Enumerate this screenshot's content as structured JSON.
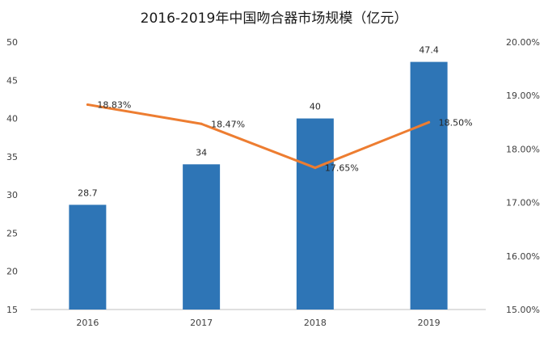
{
  "chart_data": {
    "type": "bar",
    "title": "2016-2019年中国吻合器市场规模（亿元）",
    "categories": [
      "2016",
      "2017",
      "2018",
      "2019"
    ],
    "series": [
      {
        "values": [
          28.7,
          34,
          40,
          47.4
        ],
        "kind": "bar",
        "axis": "left",
        "color": "#2E75B6",
        "labels": [
          "28.7",
          "34",
          "40",
          "47.4"
        ]
      },
      {
        "values": [
          18.83,
          18.47,
          17.65,
          18.5
        ],
        "kind": "line",
        "axis": "right",
        "color": "#ED7D31",
        "labels": [
          "18.83%",
          "18.47%",
          "17.65%",
          "18.50%"
        ]
      }
    ],
    "ylim": [
      15,
      50
    ],
    "y_ticks": [
      "15",
      "20",
      "25",
      "30",
      "35",
      "40",
      "45",
      "50"
    ],
    "y2lim": [
      15,
      20
    ],
    "y2_ticks": [
      "15.00%",
      "16.00%",
      "17.00%",
      "18.00%",
      "19.00%",
      "20.00%"
    ],
    "grid": false,
    "legend": "none"
  }
}
